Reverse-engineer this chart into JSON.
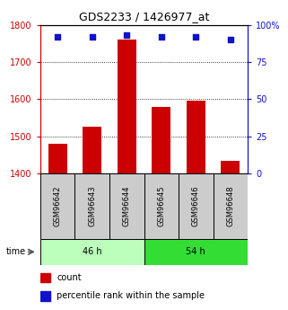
{
  "title": "GDS2233 / 1426977_at",
  "categories": [
    "GSM96642",
    "GSM96643",
    "GSM96644",
    "GSM96645",
    "GSM96646",
    "GSM96648"
  ],
  "counts": [
    1480,
    1525,
    1760,
    1580,
    1595,
    1435
  ],
  "percentiles": [
    92,
    92,
    93,
    92,
    92,
    90
  ],
  "ylim_left": [
    1400,
    1800
  ],
  "ylim_right": [
    0,
    100
  ],
  "yticks_left": [
    1400,
    1500,
    1600,
    1700,
    1800
  ],
  "yticks_right": [
    0,
    25,
    50,
    75,
    100
  ],
  "bar_color": "#cc0000",
  "dot_color": "#1111cc",
  "groups": [
    {
      "label": "46 h",
      "indices": [
        0,
        1,
        2
      ],
      "color": "#bbffbb"
    },
    {
      "label": "54 h",
      "indices": [
        3,
        4,
        5
      ],
      "color": "#33dd33"
    }
  ],
  "sample_bg_color": "#cccccc",
  "legend_count_color": "#cc0000",
  "legend_pct_color": "#1111cc",
  "bar_width": 0.55,
  "axis_color_left": "#cc0000",
  "axis_color_right": "#1111cc",
  "background_color": "#ffffff",
  "plot_bg_color": "#ffffff",
  "title_fontsize": 9,
  "tick_fontsize": 7,
  "legend_fontsize": 7,
  "sample_fontsize": 6
}
